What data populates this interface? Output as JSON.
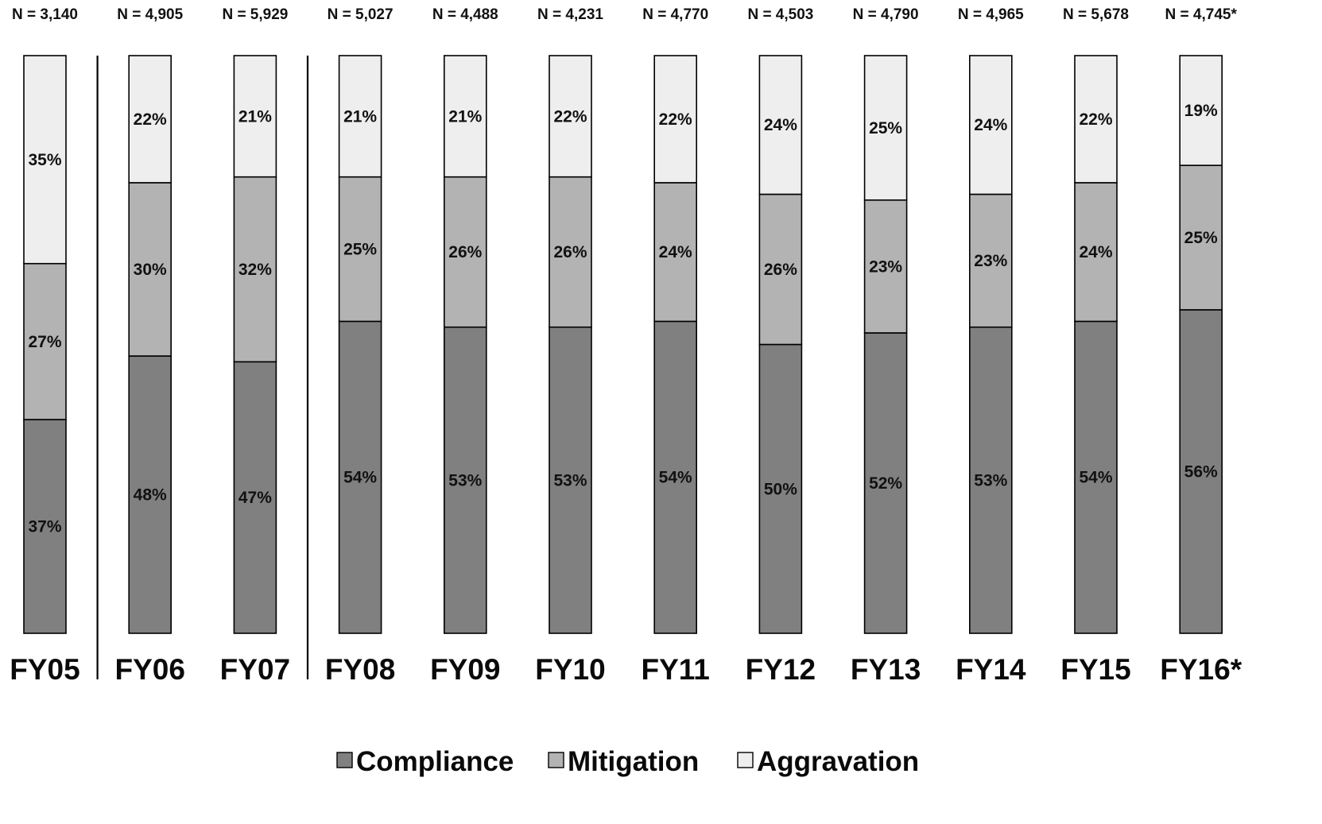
{
  "chart_data": {
    "type": "bar",
    "stacked": true,
    "normalized_percent": true,
    "categories": [
      "FY05",
      "FY06",
      "FY07",
      "FY08",
      "FY09",
      "FY10",
      "FY11",
      "FY12",
      "FY13",
      "FY14",
      "FY15",
      "FY16*"
    ],
    "n_labels": [
      "N = 3,140",
      "N = 4,905",
      "N = 5,929",
      "N = 5,027",
      "N = 4,488",
      "N = 4,231",
      "N = 4,770",
      "N = 4,503",
      "N = 4,790",
      "N = 4,965",
      "N = 5,678",
      "N = 4,745*"
    ],
    "series": [
      {
        "name": "Compliance",
        "color": "#808080",
        "values": [
          37,
          48,
          47,
          54,
          53,
          53,
          54,
          50,
          52,
          53,
          54,
          56
        ],
        "labels": [
          "37%",
          "48%",
          "47%",
          "54%",
          "53%",
          "53%",
          "54%",
          "50%",
          "52%",
          "53%",
          "54%",
          "56%"
        ]
      },
      {
        "name": "Mitigation",
        "color": "#b3b3b3",
        "values": [
          27,
          30,
          32,
          25,
          26,
          26,
          24,
          26,
          23,
          23,
          24,
          25
        ],
        "labels": [
          "27%",
          "30%",
          "32%",
          "25%",
          "26%",
          "26%",
          "24%",
          "26%",
          "23%",
          "23%",
          "24%",
          "25%"
        ]
      },
      {
        "name": "Aggravation",
        "color": "#eeeeee",
        "values": [
          35,
          22,
          21,
          21,
          21,
          22,
          22,
          24,
          25,
          24,
          22,
          19
        ],
        "labels": [
          "35%",
          "22%",
          "21%",
          "21%",
          "21%",
          "22%",
          "22%",
          "24%",
          "25%",
          "24%",
          "22%",
          "19%"
        ]
      }
    ],
    "separators_after": [
      "FY05",
      "FY07"
    ],
    "legend": {
      "placement": "bottom-center",
      "items": [
        "Compliance",
        "Mitigation",
        "Aggravation"
      ]
    },
    "ylim": [
      0,
      100
    ],
    "grid": false,
    "title": "",
    "xlabel": "",
    "ylabel": ""
  }
}
